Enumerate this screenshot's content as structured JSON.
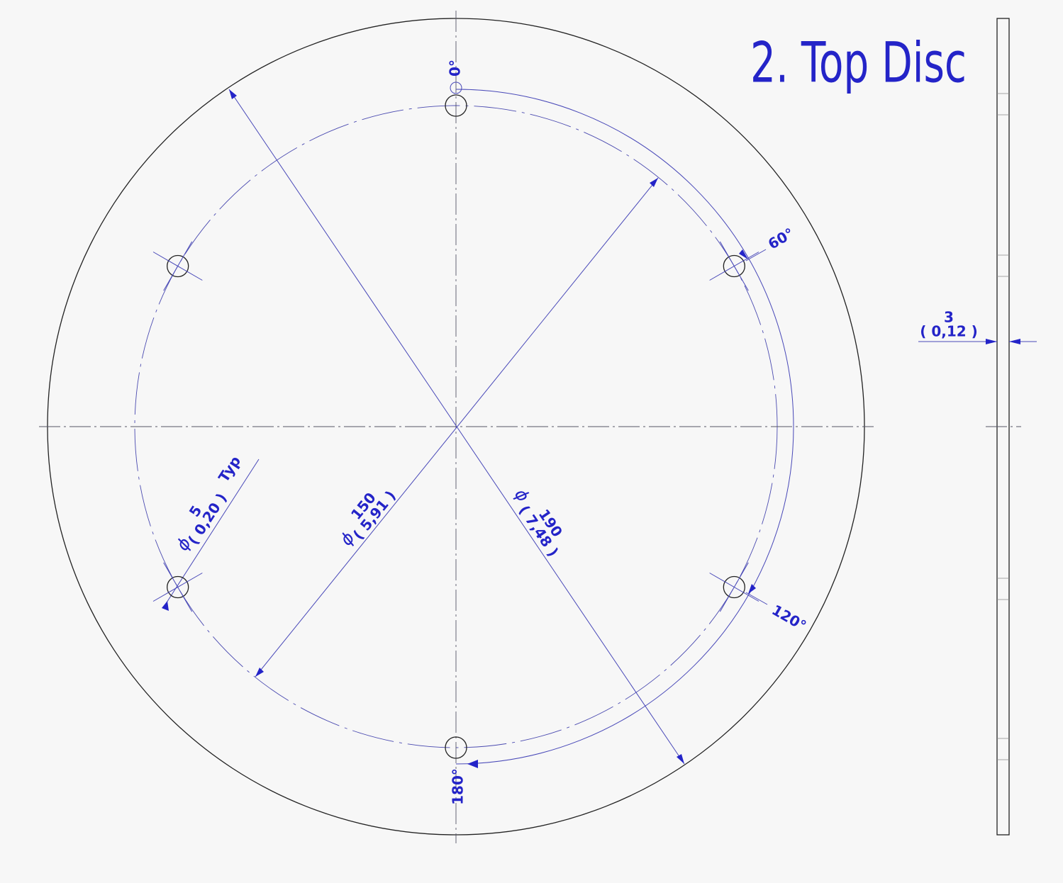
{
  "title": "2. Top Disc",
  "angles": [
    "0°",
    "60°",
    "120°",
    "180°"
  ],
  "thickness": {
    "value": "3",
    "alt": "( 0,12 )"
  },
  "dimensions": [
    {
      "symbol": "ϕ",
      "value": "150",
      "alt": "( 5,91 )"
    },
    {
      "symbol": "ϕ",
      "value": "190",
      "alt": "( 7,48 )"
    },
    {
      "symbol": "ϕ",
      "value": "5",
      "alt": "( 0,20 )",
      "note": "Typ"
    }
  ]
}
